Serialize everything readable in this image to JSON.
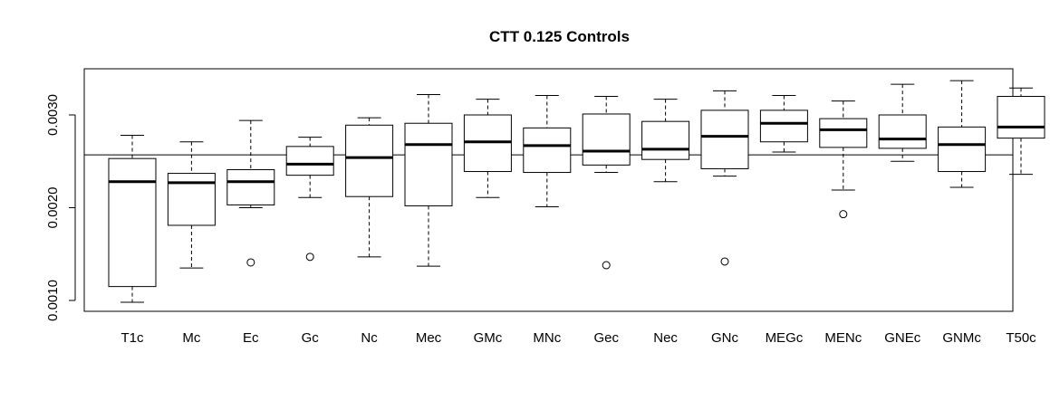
{
  "chart_data": {
    "type": "boxplot",
    "title": "CTT 0.125 Controls",
    "xlabel": "",
    "ylabel": "",
    "ylim": [
      0.0009,
      0.0034
    ],
    "y_ticks": [
      0.001,
      0.002,
      0.003
    ],
    "y_tick_labels": [
      "0.0010",
      "0.0020",
      "0.0030"
    ],
    "reference_line": 0.00257,
    "grid": false,
    "categories": [
      "T1c",
      "Mc",
      "Ec",
      "Gc",
      "Nc",
      "Mec",
      "GMc",
      "MNc",
      "Gec",
      "Nec",
      "GNc",
      "MEGc",
      "MENc",
      "GNEc",
      "GNMc",
      "T50c"
    ],
    "boxes": [
      {
        "category": "T1c",
        "whisker_low": 0.00098,
        "q1": 0.00115,
        "median": 0.00228,
        "q3": 0.00253,
        "whisker_high": 0.00278,
        "outliers": []
      },
      {
        "category": "Mc",
        "whisker_low": 0.00135,
        "q1": 0.00181,
        "median": 0.00227,
        "q3": 0.00237,
        "whisker_high": 0.00271,
        "outliers": []
      },
      {
        "category": "Ec",
        "whisker_low": 0.002,
        "q1": 0.00203,
        "median": 0.00228,
        "q3": 0.00241,
        "whisker_high": 0.00294,
        "outliers": [
          0.00141
        ]
      },
      {
        "category": "Gc",
        "whisker_low": 0.00211,
        "q1": 0.00235,
        "median": 0.00247,
        "q3": 0.00266,
        "whisker_high": 0.00276,
        "outliers": [
          0.00147
        ]
      },
      {
        "category": "Nc",
        "whisker_low": 0.00147,
        "q1": 0.00212,
        "median": 0.00254,
        "q3": 0.00289,
        "whisker_high": 0.00297,
        "outliers": []
      },
      {
        "category": "Mec",
        "whisker_low": 0.00137,
        "q1": 0.00202,
        "median": 0.00268,
        "q3": 0.00291,
        "whisker_high": 0.00322,
        "outliers": []
      },
      {
        "category": "GMc",
        "whisker_low": 0.00211,
        "q1": 0.00239,
        "median": 0.00271,
        "q3": 0.003,
        "whisker_high": 0.00317,
        "outliers": []
      },
      {
        "category": "MNc",
        "whisker_low": 0.00201,
        "q1": 0.00238,
        "median": 0.00267,
        "q3": 0.00286,
        "whisker_high": 0.00321,
        "outliers": []
      },
      {
        "category": "Gec",
        "whisker_low": 0.00238,
        "q1": 0.00246,
        "median": 0.00261,
        "q3": 0.00301,
        "whisker_high": 0.0032,
        "outliers": [
          0.00138
        ]
      },
      {
        "category": "Nec",
        "whisker_low": 0.00228,
        "q1": 0.00252,
        "median": 0.00263,
        "q3": 0.00293,
        "whisker_high": 0.00317,
        "outliers": []
      },
      {
        "category": "GNc",
        "whisker_low": 0.00234,
        "q1": 0.00242,
        "median": 0.00277,
        "q3": 0.00305,
        "whisker_high": 0.00326,
        "outliers": [
          0.00142
        ]
      },
      {
        "category": "MEGc",
        "whisker_low": 0.0026,
        "q1": 0.00271,
        "median": 0.00291,
        "q3": 0.00305,
        "whisker_high": 0.00321,
        "outliers": []
      },
      {
        "category": "MENc",
        "whisker_low": 0.00219,
        "q1": 0.00265,
        "median": 0.00284,
        "q3": 0.00296,
        "whisker_high": 0.00315,
        "outliers": [
          0.00193
        ]
      },
      {
        "category": "GNEc",
        "whisker_low": 0.0025,
        "q1": 0.00264,
        "median": 0.00274,
        "q3": 0.003,
        "whisker_high": 0.00333,
        "outliers": []
      },
      {
        "category": "GNMc",
        "whisker_low": 0.00222,
        "q1": 0.00239,
        "median": 0.00268,
        "q3": 0.00287,
        "whisker_high": 0.00337,
        "outliers": []
      },
      {
        "category": "T50c",
        "whisker_low": 0.00236,
        "q1": 0.00275,
        "median": 0.00287,
        "q3": 0.0032,
        "whisker_high": 0.00329,
        "outliers": []
      }
    ],
    "colors": {
      "box_stroke": "#000000",
      "median": "#000000",
      "background": "#ffffff"
    }
  }
}
